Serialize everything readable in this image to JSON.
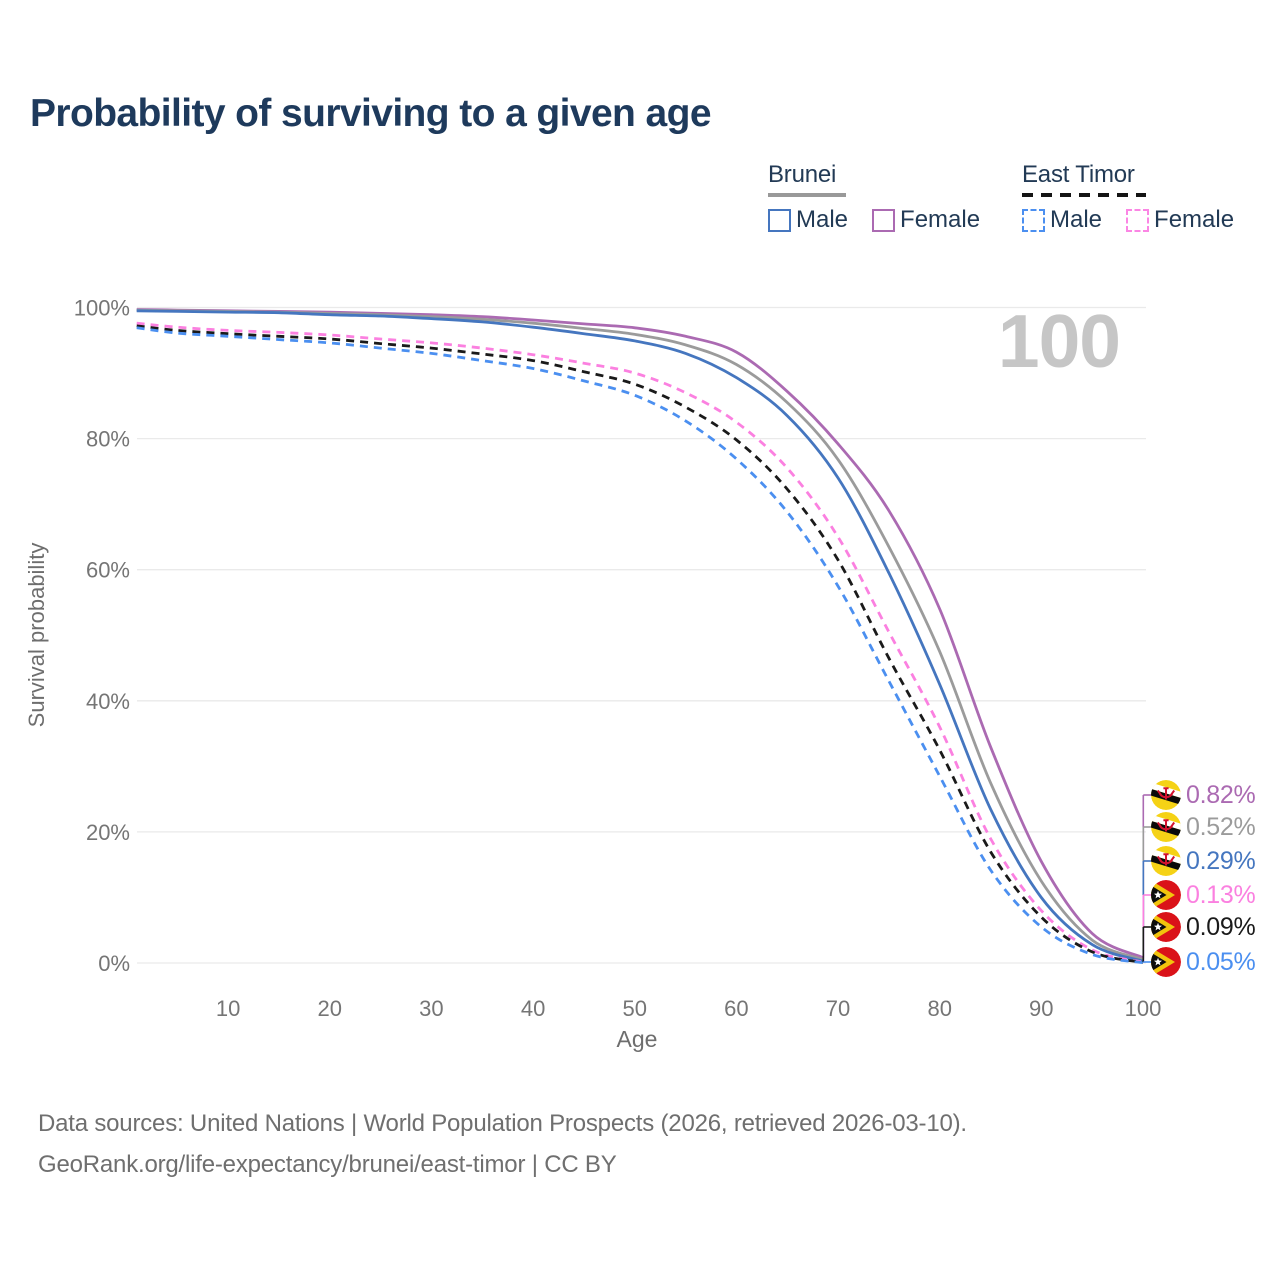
{
  "page": {
    "title": "Probability of surviving to a given age",
    "watermark_age": "100"
  },
  "legend": {
    "groups": [
      {
        "country": "Brunei",
        "line_style": "solid",
        "line_color": "#999999",
        "items": [
          {
            "label": "Male",
            "color": "#4576bf",
            "dashed": false
          },
          {
            "label": "Female",
            "color": "#ab6ab2",
            "dashed": false
          }
        ]
      },
      {
        "country": "East Timor",
        "line_style": "dashed",
        "line_color": "#141414",
        "items": [
          {
            "label": "Male",
            "color": "#4b8ff0",
            "dashed": true
          },
          {
            "label": "Female",
            "color": "#fb86e4",
            "dashed": true
          }
        ]
      }
    ]
  },
  "axes": {
    "y_label": "Survival probability",
    "x_label": "Age",
    "y_ticks": [
      "100%",
      "80%",
      "60%",
      "40%",
      "20%",
      "0%"
    ],
    "y_tick_values": [
      100,
      80,
      60,
      40,
      20,
      0
    ],
    "x_ticks": [
      "10",
      "20",
      "30",
      "40",
      "50",
      "60",
      "70",
      "80",
      "90",
      "100"
    ]
  },
  "footer": {
    "line1": "Data sources: United Nations | World Population Prospects (2026, retrieved 2026-03-10).",
    "line2": "GeoRank.org/life-expectancy/brunei/east-timor | CC BY"
  },
  "chart_data": {
    "type": "line",
    "title": "Probability of surviving to a given age",
    "xlabel": "Age",
    "ylabel": "Survival probability",
    "x_range": [
      0,
      100
    ],
    "y_range_percent": [
      0,
      100
    ],
    "grid": "horizontal",
    "legend_position": "top-right",
    "ages": [
      1,
      5,
      10,
      15,
      20,
      25,
      30,
      35,
      40,
      45,
      50,
      55,
      60,
      65,
      70,
      75,
      80,
      85,
      90,
      95,
      100
    ],
    "series": [
      {
        "id": "brunei-female",
        "name": "Brunei Female",
        "color": "#ab6ab2",
        "dashed": false,
        "end_label": "0.82%",
        "flag": "brunei",
        "values": [
          99.7,
          99.6,
          99.5,
          99.4,
          99.3,
          99.1,
          98.9,
          98.6,
          98.1,
          97.5,
          96.9,
          95.6,
          93.2,
          87.2,
          79.2,
          69.0,
          54.0,
          33.0,
          15.5,
          4.5,
          0.82
        ]
      },
      {
        "id": "brunei-both",
        "name": "Brunei (both sexes)",
        "color": "#9b9b9b",
        "dashed": false,
        "end_label": "0.52%",
        "flag": "brunei",
        "values": [
          99.6,
          99.5,
          99.4,
          99.3,
          99.1,
          98.9,
          98.6,
          98.2,
          97.6,
          96.8,
          95.9,
          94.3,
          91.3,
          85.5,
          76.8,
          63.5,
          47.5,
          27.5,
          12.5,
          3.5,
          0.52
        ]
      },
      {
        "id": "brunei-male",
        "name": "Brunei Male",
        "color": "#4576bf",
        "dashed": false,
        "end_label": "0.29%",
        "flag": "brunei",
        "values": [
          99.5,
          99.4,
          99.3,
          99.2,
          98.9,
          98.7,
          98.3,
          97.8,
          97.0,
          96.0,
          94.9,
          93.0,
          89.3,
          83.5,
          74.0,
          59.5,
          42.5,
          23.5,
          10.0,
          2.8,
          0.29
        ]
      },
      {
        "id": "east-timor-female",
        "name": "East Timor Female",
        "color": "#fb80e0",
        "dashed": true,
        "end_label": "0.13%",
        "flag": "east-timor",
        "values": [
          97.6,
          97.0,
          96.5,
          96.2,
          95.8,
          95.2,
          94.6,
          93.8,
          92.8,
          91.5,
          90.0,
          87.0,
          82.5,
          75.5,
          65.0,
          50.5,
          36.0,
          19.0,
          8.0,
          2.0,
          0.13
        ]
      },
      {
        "id": "east-timor-both",
        "name": "East Timor (both sexes)",
        "color": "#1a1a1a",
        "dashed": true,
        "end_label": "0.09%",
        "flag": "east-timor",
        "values": [
          97.2,
          96.5,
          96.0,
          95.6,
          95.2,
          94.5,
          93.8,
          92.9,
          91.9,
          90.2,
          88.3,
          84.8,
          79.8,
          72.3,
          61.5,
          46.5,
          32.5,
          17.0,
          7.0,
          1.7,
          0.09
        ]
      },
      {
        "id": "east-timor-male",
        "name": "East Timor Male",
        "color": "#4b8ff0",
        "dashed": true,
        "end_label": "0.05%",
        "flag": "east-timor",
        "values": [
          96.9,
          96.1,
          95.6,
          95.1,
          94.6,
          93.8,
          93.0,
          91.9,
          90.7,
          88.8,
          86.6,
          82.7,
          76.9,
          68.8,
          57.5,
          43.0,
          28.5,
          14.2,
          5.5,
          1.3,
          0.05
        ]
      }
    ]
  }
}
